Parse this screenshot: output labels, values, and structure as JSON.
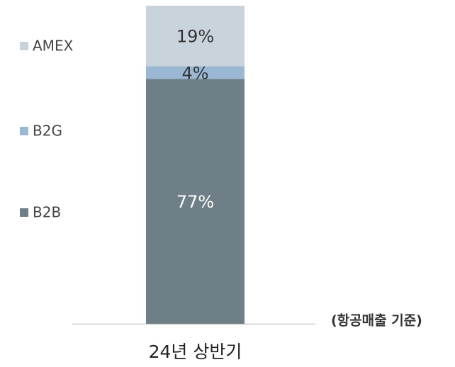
{
  "chart_data": {
    "type": "stacked_bar",
    "categories": [
      "24년 상반기"
    ],
    "series": [
      {
        "name": "B2B",
        "color": "#6f7f88",
        "values": [
          77
        ],
        "value_labels": [
          "77%"
        ]
      },
      {
        "name": "B2G",
        "color": "#9ab8d4",
        "values": [
          4
        ],
        "value_labels": [
          "4%"
        ]
      },
      {
        "name": "AMEX",
        "color": "#c9d3dc",
        "values": [
          19
        ],
        "value_labels": [
          "19%"
        ]
      }
    ],
    "ylim": [
      0,
      100
    ],
    "annotation": "(항공매출 기준)",
    "legend": "left"
  }
}
